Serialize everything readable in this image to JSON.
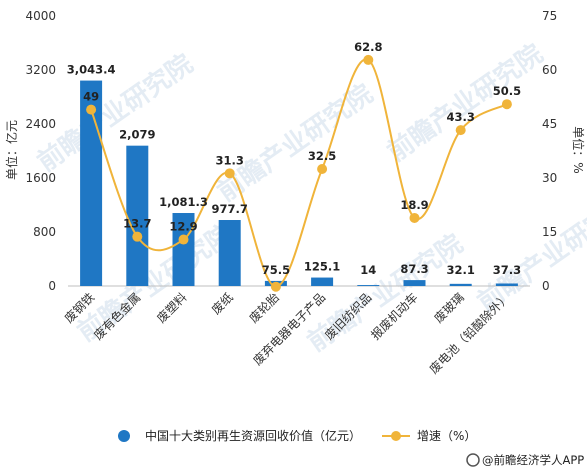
{
  "chart_data": {
    "type": "bar",
    "categories": [
      "废钢铁",
      "废有色金属",
      "废塑料",
      "废纸",
      "废轮胎",
      "废弃电器电子产品",
      "废旧纺织品",
      "报废机动车",
      "废玻璃",
      "废电池（铅酸除外）"
    ],
    "series": [
      {
        "name": "中国十大类别再生资源回收价值（亿元）",
        "kind": "bar",
        "axis": "left",
        "color": "#1f77c4",
        "values": [
          3043.4,
          2079,
          1081.3,
          977.7,
          75.5,
          125.1,
          14,
          87.3,
          32.1,
          37.3
        ],
        "labels": [
          "3,043.4",
          "2,079",
          "1,081.3",
          "977.7",
          "75.5",
          "125.1",
          "14",
          "87.3",
          "32.1",
          "37.3"
        ]
      },
      {
        "name": "增速（%）",
        "kind": "line",
        "axis": "right",
        "color": "#f0b43a",
        "values": [
          49,
          13.7,
          12.9,
          31.3,
          -0.2,
          32.5,
          62.8,
          18.9,
          43.3,
          50.5
        ],
        "labels": [
          "49",
          "13.7",
          "12.9",
          "31.3",
          "",
          "32.5",
          "62.8",
          "18.9",
          "43.3",
          "50.5"
        ]
      }
    ],
    "ylabel_left": "单位：亿元",
    "ylabel_right": "单位：%",
    "ylim_left": [
      0,
      4000
    ],
    "yticks_left": [
      "0",
      "800",
      "1600",
      "2400",
      "3200",
      "4000"
    ],
    "ylim_right": [
      0,
      75
    ],
    "yticks_right": [
      "0",
      "15",
      "30",
      "45",
      "60",
      "75"
    ],
    "grid": false,
    "legend_position": "bottom"
  },
  "legend": {
    "bar_label": "中国十大类别再生资源回收价值（亿元）",
    "line_label": "增速（%）"
  },
  "source": "@前瞻经济学人APP",
  "watermark": "前瞻产业研究院"
}
